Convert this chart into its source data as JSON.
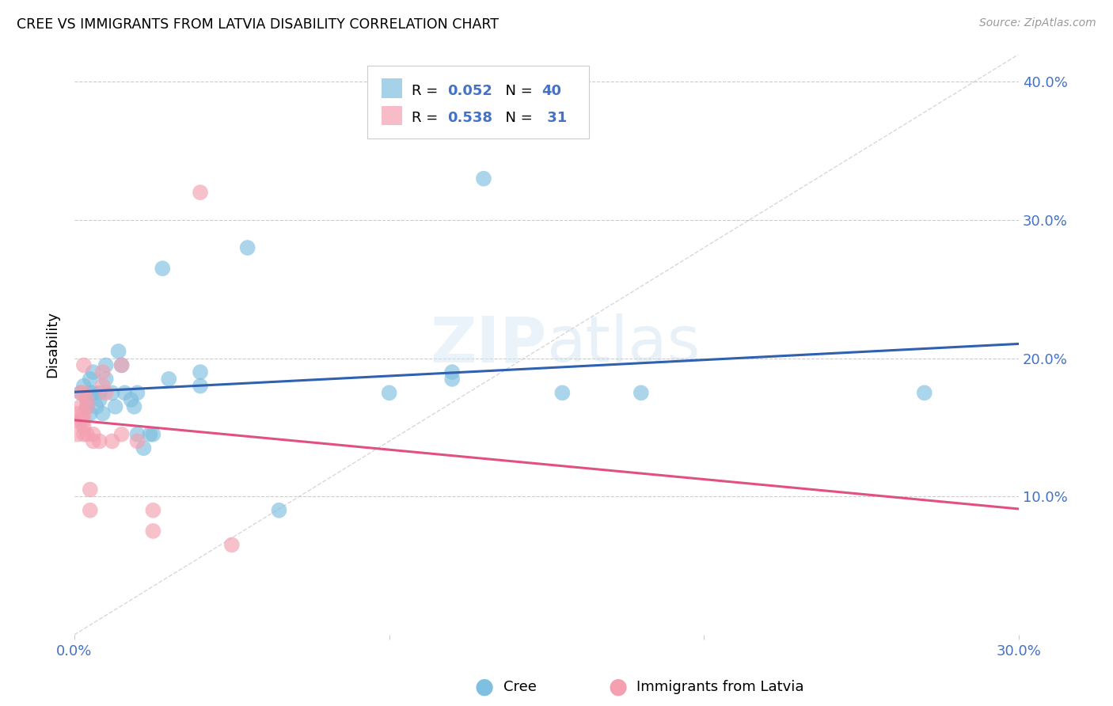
{
  "title": "CREE VS IMMIGRANTS FROM LATVIA DISABILITY CORRELATION CHART",
  "source": "Source: ZipAtlas.com",
  "ylabel_label": "Disability",
  "xlim": [
    0.0,
    0.3
  ],
  "ylim": [
    0.0,
    0.42
  ],
  "watermark": "ZIPatlas",
  "legend": {
    "cree_label": "Cree",
    "latvia_label": "Immigrants from Latvia",
    "cree_R": "0.052",
    "cree_N": "40",
    "latvia_R": "0.538",
    "latvia_N": "31"
  },
  "cree_scatter": [
    [
      0.002,
      0.175
    ],
    [
      0.003,
      0.18
    ],
    [
      0.004,
      0.17
    ],
    [
      0.004,
      0.165
    ],
    [
      0.005,
      0.185
    ],
    [
      0.005,
      0.175
    ],
    [
      0.005,
      0.16
    ],
    [
      0.006,
      0.19
    ],
    [
      0.006,
      0.175
    ],
    [
      0.007,
      0.165
    ],
    [
      0.008,
      0.175
    ],
    [
      0.008,
      0.17
    ],
    [
      0.009,
      0.16
    ],
    [
      0.01,
      0.195
    ],
    [
      0.01,
      0.185
    ],
    [
      0.012,
      0.175
    ],
    [
      0.013,
      0.165
    ],
    [
      0.014,
      0.205
    ],
    [
      0.015,
      0.195
    ],
    [
      0.016,
      0.175
    ],
    [
      0.018,
      0.17
    ],
    [
      0.019,
      0.165
    ],
    [
      0.02,
      0.175
    ],
    [
      0.02,
      0.145
    ],
    [
      0.022,
      0.135
    ],
    [
      0.024,
      0.145
    ],
    [
      0.025,
      0.145
    ],
    [
      0.028,
      0.265
    ],
    [
      0.03,
      0.185
    ],
    [
      0.04,
      0.19
    ],
    [
      0.04,
      0.18
    ],
    [
      0.055,
      0.28
    ],
    [
      0.065,
      0.09
    ],
    [
      0.1,
      0.175
    ],
    [
      0.12,
      0.19
    ],
    [
      0.12,
      0.185
    ],
    [
      0.13,
      0.33
    ],
    [
      0.155,
      0.175
    ],
    [
      0.18,
      0.175
    ],
    [
      0.27,
      0.175
    ]
  ],
  "latvia_scatter": [
    [
      0.0,
      0.155
    ],
    [
      0.001,
      0.145
    ],
    [
      0.001,
      0.16
    ],
    [
      0.002,
      0.155
    ],
    [
      0.002,
      0.165
    ],
    [
      0.002,
      0.175
    ],
    [
      0.003,
      0.195
    ],
    [
      0.003,
      0.175
    ],
    [
      0.003,
      0.16
    ],
    [
      0.003,
      0.155
    ],
    [
      0.003,
      0.15
    ],
    [
      0.003,
      0.145
    ],
    [
      0.004,
      0.17
    ],
    [
      0.004,
      0.165
    ],
    [
      0.004,
      0.145
    ],
    [
      0.005,
      0.105
    ],
    [
      0.005,
      0.09
    ],
    [
      0.006,
      0.145
    ],
    [
      0.006,
      0.14
    ],
    [
      0.008,
      0.14
    ],
    [
      0.009,
      0.19
    ],
    [
      0.009,
      0.18
    ],
    [
      0.01,
      0.175
    ],
    [
      0.012,
      0.14
    ],
    [
      0.015,
      0.195
    ],
    [
      0.015,
      0.145
    ],
    [
      0.02,
      0.14
    ],
    [
      0.025,
      0.09
    ],
    [
      0.025,
      0.075
    ],
    [
      0.04,
      0.32
    ],
    [
      0.05,
      0.065
    ]
  ],
  "cree_color": "#7fbfdf",
  "latvia_color": "#f4a0b0",
  "cree_line_color": "#3060b0",
  "latvia_line_color": "#e05080",
  "diagonal_color": "#c8c8c8",
  "background_color": "#ffffff",
  "grid_color": "#cccccc",
  "text_blue": "#4472c4",
  "legend_text_color": "#4472c4"
}
